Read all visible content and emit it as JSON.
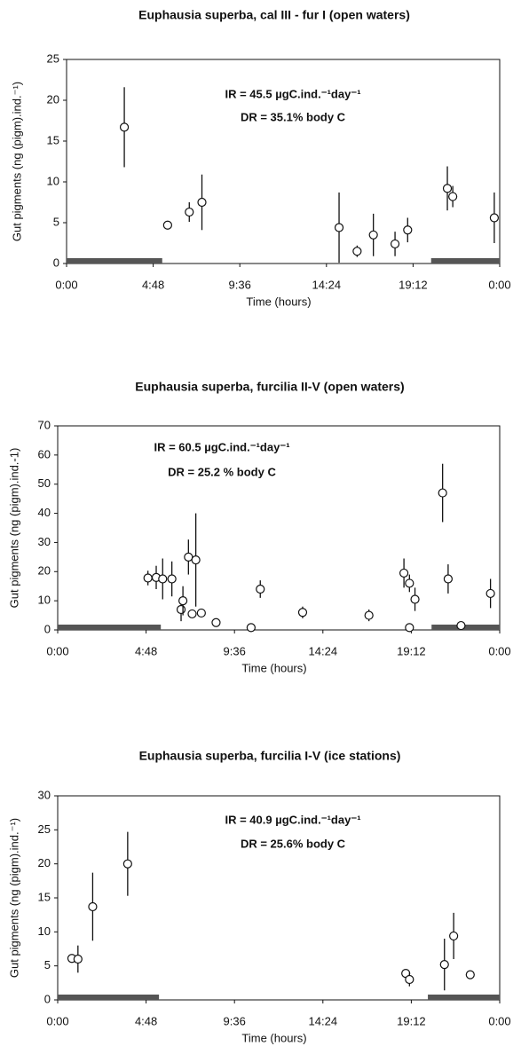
{
  "chart_data": [
    {
      "type": "scatter",
      "title": "Euphausia superba, cal III - fur I (open waters)",
      "annotations": [
        "IR = 45.5 µgC.ind.⁻¹day⁻¹",
        "DR = 35.1% body C"
      ],
      "xlabel": "Time (hours)",
      "ylabel": "Gut pigments (ng (pigm).ind.⁻¹)",
      "x": [
        3.2,
        5.6,
        6.8,
        7.5,
        15.1,
        16.1,
        17.0,
        18.2,
        18.9,
        21.1,
        21.4,
        23.7
      ],
      "values": [
        16.7,
        4.7,
        6.3,
        7.5,
        4.4,
        1.5,
        3.5,
        2.4,
        4.1,
        9.2,
        8.2,
        5.6
      ],
      "errors": [
        4.9,
        null,
        1.2,
        3.4,
        4.3,
        0.7,
        2.6,
        1.5,
        1.5,
        2.7,
        1.3,
        3.1
      ],
      "night_periods": [
        [
          0,
          5.3
        ],
        [
          20.2,
          24
        ]
      ],
      "xlim": [
        0,
        24
      ],
      "xticks": [
        {
          "value": 0,
          "label": "0:00"
        },
        {
          "value": 4.8,
          "label": "4:48"
        },
        {
          "value": 9.6,
          "label": "9:36"
        },
        {
          "value": 14.4,
          "label": "14:24"
        },
        {
          "value": 19.2,
          "label": "19:12"
        },
        {
          "value": 24,
          "label": "0:00"
        }
      ],
      "ylim": [
        0,
        25
      ],
      "yticks": [
        0,
        5,
        10,
        15,
        20,
        25
      ]
    },
    {
      "type": "scatter",
      "title": "Euphausia superba, furcilia II-V (open waters)",
      "annotations": [
        "IR = 60.5 µgC.ind.⁻¹day⁻¹",
        "DR = 25.2 % body C"
      ],
      "xlabel": "Time (hours)",
      "ylabel": "Gut pigments (ng (pigm).ind.-1)",
      "x": [
        4.9,
        5.35,
        5.7,
        6.2,
        6.7,
        6.8,
        7.1,
        7.3,
        7.5,
        7.8,
        8.6,
        10.5,
        11.0,
        13.3,
        16.9,
        18.8,
        19.1,
        19.1,
        19.4,
        20.9,
        21.2,
        21.9,
        23.5
      ],
      "values": [
        17.8,
        18,
        17.5,
        17.5,
        7,
        10,
        25,
        5.5,
        24,
        5.8,
        2.5,
        0.8,
        14,
        6,
        5,
        19.5,
        16,
        0.8,
        10.5,
        47,
        17.5,
        1.5,
        12.5
      ],
      "errors": [
        2.5,
        4,
        7,
        6,
        4,
        5,
        6,
        null,
        16,
        null,
        null,
        null,
        3,
        2,
        2,
        5,
        3,
        null,
        4,
        10,
        5,
        null,
        5
      ],
      "night_periods": [
        [
          0,
          5.6
        ],
        [
          20.3,
          24
        ]
      ],
      "xlim": [
        0,
        24
      ],
      "xticks": [
        {
          "value": 0,
          "label": "0:00"
        },
        {
          "value": 4.8,
          "label": "4:48"
        },
        {
          "value": 9.6,
          "label": "9:36"
        },
        {
          "value": 14.4,
          "label": "14:24"
        },
        {
          "value": 19.2,
          "label": "19:12"
        },
        {
          "value": 24,
          "label": "0:00"
        }
      ],
      "ylim": [
        0,
        70
      ],
      "yticks": [
        0,
        10,
        20,
        30,
        40,
        50,
        60,
        70
      ]
    },
    {
      "type": "scatter",
      "title": "Euphausia superba, furcilia I-V (ice stations)",
      "annotations": [
        "IR = 40.9 µgC.ind.⁻¹day⁻¹",
        "DR = 25.6% body C"
      ],
      "xlabel": "Time (hours)",
      "ylabel": "Gut pigments (ng (pigm).ind.⁻¹)",
      "x": [
        0.77,
        1.1,
        1.9,
        3.8,
        18.9,
        19.1,
        21.0,
        21.5,
        22.4
      ],
      "values": [
        6.1,
        6,
        13.7,
        20,
        3.9,
        3,
        5.2,
        9.4,
        3.7
      ],
      "errors": [
        null,
        2,
        5,
        4.7,
        null,
        1,
        3.8,
        3.4,
        null
      ],
      "night_periods": [
        [
          0,
          5.5
        ],
        [
          20.1,
          24
        ]
      ],
      "xlim": [
        0,
        24
      ],
      "xticks": [
        {
          "value": 0,
          "label": "0:00"
        },
        {
          "value": 4.8,
          "label": "4:48"
        },
        {
          "value": 9.6,
          "label": "9:36"
        },
        {
          "value": 14.4,
          "label": "14:24"
        },
        {
          "value": 19.2,
          "label": "19:12"
        },
        {
          "value": 24,
          "label": "0:00"
        }
      ],
      "ylim": [
        0,
        30
      ],
      "yticks": [
        0,
        5,
        10,
        15,
        20,
        25,
        30
      ]
    }
  ]
}
